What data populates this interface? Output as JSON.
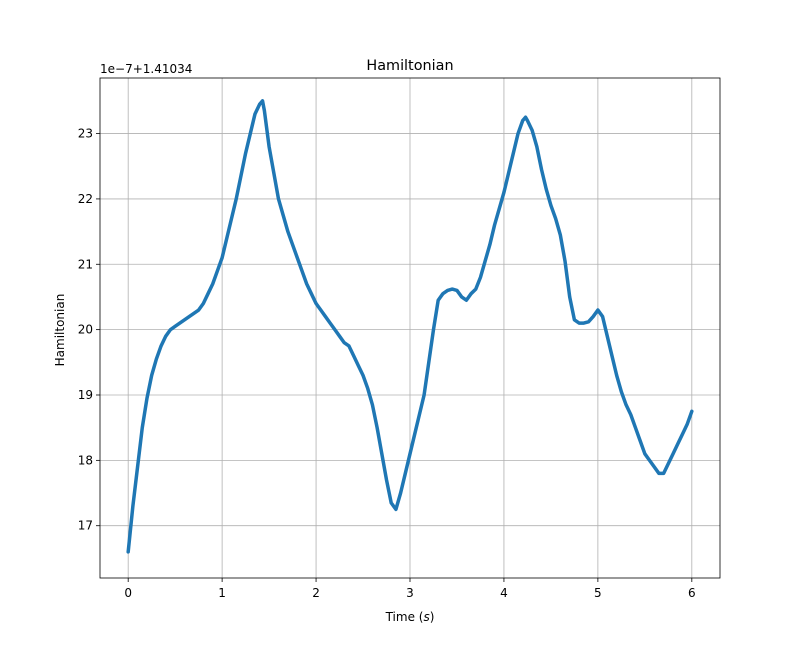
{
  "chart_data": {
    "type": "line",
    "title": "Hamiltonian",
    "xlabel_prefix": "Time (",
    "xlabel_unit": "s",
    "xlabel_suffix": ")",
    "ylabel": "Hamiltonian",
    "y_offset_label": "1e−7+1.41034",
    "xlim": [
      -0.3,
      6.3
    ],
    "ylim": [
      16.2,
      23.85
    ],
    "x_ticks": [
      0,
      1,
      2,
      3,
      4,
      5,
      6
    ],
    "x_tick_labels": [
      "0",
      "1",
      "2",
      "3",
      "4",
      "5",
      "6"
    ],
    "y_ticks": [
      17,
      18,
      19,
      20,
      21,
      22,
      23
    ],
    "y_tick_labels": [
      "17",
      "18",
      "19",
      "20",
      "21",
      "22",
      "23"
    ],
    "grid": true,
    "line_color": "#1f77b4",
    "series": [
      {
        "x": [
          0,
          0.05,
          0.1,
          0.15,
          0.2,
          0.25,
          0.3,
          0.35,
          0.4,
          0.45,
          0.5,
          0.55,
          0.6,
          0.65,
          0.7,
          0.75,
          0.8,
          0.85,
          0.9,
          0.95,
          1.0,
          1.05,
          1.1,
          1.15,
          1.2,
          1.25,
          1.3,
          1.35,
          1.4,
          1.43,
          1.45,
          1.5,
          1.55,
          1.6,
          1.65,
          1.7,
          1.75,
          1.8,
          1.85,
          1.9,
          1.95,
          2.0,
          2.05,
          2.1,
          2.15,
          2.2,
          2.25,
          2.3,
          2.35,
          2.4,
          2.45,
          2.5,
          2.55,
          2.6,
          2.65,
          2.7,
          2.75,
          2.8,
          2.85,
          2.9,
          2.95,
          3.0,
          3.05,
          3.1,
          3.15,
          3.2,
          3.25,
          3.3,
          3.35,
          3.4,
          3.45,
          3.5,
          3.55,
          3.6,
          3.65,
          3.7,
          3.75,
          3.8,
          3.85,
          3.9,
          3.95,
          4.0,
          4.05,
          4.1,
          4.15,
          4.2,
          4.23,
          4.25,
          4.3,
          4.35,
          4.4,
          4.45,
          4.5,
          4.55,
          4.6,
          4.65,
          4.7,
          4.75,
          4.8,
          4.85,
          4.9,
          4.95,
          5.0,
          5.05,
          5.1,
          5.15,
          5.2,
          5.25,
          5.3,
          5.35,
          5.4,
          5.45,
          5.5,
          5.55,
          5.6,
          5.65,
          5.7,
          5.75,
          5.8,
          5.85,
          5.9,
          5.95,
          6.0
        ],
        "y": [
          16.6,
          17.3,
          17.9,
          18.5,
          18.95,
          19.3,
          19.55,
          19.75,
          19.9,
          20.0,
          20.05,
          20.1,
          20.15,
          20.2,
          20.25,
          20.3,
          20.4,
          20.55,
          20.7,
          20.9,
          21.1,
          21.4,
          21.7,
          22.0,
          22.35,
          22.7,
          23.0,
          23.3,
          23.45,
          23.5,
          23.35,
          22.8,
          22.4,
          22.0,
          21.75,
          21.5,
          21.3,
          21.1,
          20.9,
          20.7,
          20.55,
          20.4,
          20.3,
          20.2,
          20.1,
          20.0,
          19.9,
          19.8,
          19.75,
          19.6,
          19.45,
          19.3,
          19.1,
          18.85,
          18.5,
          18.1,
          17.7,
          17.35,
          17.25,
          17.5,
          17.8,
          18.1,
          18.4,
          18.7,
          19.0,
          19.5,
          20.0,
          20.45,
          20.55,
          20.6,
          20.62,
          20.6,
          20.5,
          20.45,
          20.55,
          20.62,
          20.8,
          21.05,
          21.3,
          21.6,
          21.85,
          22.1,
          22.4,
          22.7,
          23.0,
          23.2,
          23.25,
          23.2,
          23.05,
          22.8,
          22.45,
          22.15,
          21.9,
          21.7,
          21.45,
          21.05,
          20.5,
          20.15,
          20.1,
          20.1,
          20.12,
          20.2,
          20.3,
          20.2,
          19.9,
          19.6,
          19.3,
          19.05,
          18.85,
          18.7,
          18.5,
          18.3,
          18.1,
          18.0,
          17.9,
          17.8,
          17.8,
          17.95,
          18.1,
          18.25,
          18.4,
          18.55,
          18.75
        ]
      }
    ]
  }
}
